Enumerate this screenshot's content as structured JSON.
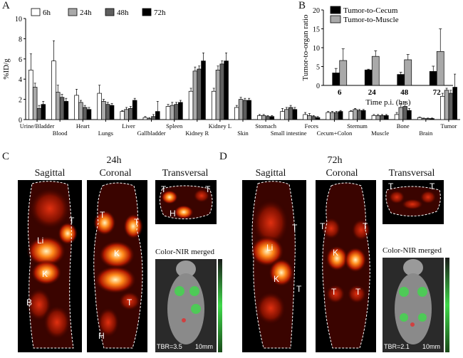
{
  "panels": {
    "A": "A",
    "B": "B",
    "C": "C",
    "D": "D"
  },
  "chart_data": [
    {
      "type": "bar",
      "ylabel": "%ID/g",
      "ylim": [
        0,
        10
      ],
      "yticks": [
        0,
        2,
        4,
        6,
        8,
        10
      ],
      "legend_position": "top-left",
      "categories": [
        "Urine/Bladder",
        "Blood",
        "Heart",
        "Lungs",
        "Liver",
        "Gallbladder",
        "Spleen",
        "Kidney R",
        "Kidney L",
        "Skin",
        "Stomach",
        "Small intestine",
        "Feces",
        "Cecum+Colon",
        "Sternum",
        "Muscle",
        "Bone",
        "Brain",
        "Tumor"
      ],
      "series": [
        {
          "name": "6h",
          "color": "#ffffff",
          "values": [
            4.9,
            5.8,
            2.4,
            2.6,
            0.8,
            0.2,
            1.3,
            2.8,
            2.8,
            1.2,
            0.4,
            0.8,
            0.5,
            0.7,
            0.8,
            0.4,
            0.5,
            0.2,
            2.3
          ]
        },
        {
          "name": "24h",
          "color": "#a9a9a9",
          "values": [
            3.2,
            2.7,
            1.7,
            1.8,
            1.0,
            0.1,
            1.4,
            4.8,
            4.9,
            2.0,
            0.4,
            1.0,
            0.4,
            0.7,
            1.0,
            0.4,
            1.2,
            0.1,
            2.9
          ]
        },
        {
          "name": "48h",
          "color": "#5e5e5e",
          "values": [
            1.1,
            2.2,
            1.2,
            1.5,
            1.1,
            0.3,
            1.5,
            5.0,
            5.5,
            1.9,
            0.3,
            1.2,
            0.3,
            0.7,
            0.9,
            0.4,
            1.3,
            0.1,
            2.6
          ]
        },
        {
          "name": "72h",
          "color": "#000000",
          "values": [
            1.5,
            1.8,
            1.0,
            1.4,
            1.9,
            0.8,
            1.7,
            5.8,
            5.8,
            1.9,
            0.3,
            1.0,
            0.2,
            0.8,
            0.9,
            0.4,
            0.9,
            0.1,
            3.2
          ]
        }
      ],
      "errors": [
        [
          1.6,
          2.0,
          0.6,
          0.8,
          0.1,
          0.1,
          0.2,
          0.3,
          0.3,
          0.2,
          0.1,
          0.3,
          0.2,
          0.1,
          0.1,
          0.1,
          0.2,
          0.05,
          0.3
        ],
        [
          0.4,
          0.7,
          0.2,
          0.2,
          0.2,
          0.1,
          0.3,
          0.4,
          0.4,
          0.2,
          0.1,
          0.2,
          0.2,
          0.1,
          0.1,
          0.1,
          0.4,
          0.05,
          0.2
        ],
        [
          0.3,
          0.3,
          0.2,
          0.2,
          0.2,
          0.2,
          0.2,
          0.3,
          0.3,
          0.2,
          0.1,
          0.2,
          0.1,
          0.1,
          0.1,
          0.1,
          0.4,
          0.05,
          0.3
        ],
        [
          0.3,
          0.3,
          0.2,
          0.2,
          0.2,
          1.0,
          0.2,
          0.8,
          0.8,
          0.2,
          0.1,
          0.2,
          0.1,
          0.1,
          0.1,
          0.1,
          0.2,
          0.05,
          1.3
        ]
      ]
    },
    {
      "type": "bar",
      "xlabel": "Time p.i. (hrs)",
      "ylabel": "Tumor-to-organ ratio",
      "ylim": [
        0,
        20
      ],
      "yticks": [
        0,
        5,
        10,
        15,
        20
      ],
      "legend_position": "top",
      "categories": [
        "6",
        "24",
        "48",
        "72"
      ],
      "series": [
        {
          "name": "Tumor-to-Cecum",
          "color": "#000000",
          "values": [
            3.3,
            4.1,
            2.9,
            3.7
          ]
        },
        {
          "name": "Tumor-to-Muscle",
          "color": "#a9a9a9",
          "values": [
            6.6,
            7.7,
            6.8,
            9.0
          ]
        }
      ],
      "errors": [
        [
          1.2,
          0.2,
          0.6,
          1.4
        ],
        [
          3.1,
          1.5,
          1.4,
          6.0
        ]
      ]
    }
  ],
  "panelC": {
    "timepoint": "24h",
    "views": {
      "sagittal": "Sagittal",
      "coronal": "Coronal",
      "transversal": "Transversal"
    },
    "merged_label": "Color-NIR merged",
    "tbr": "TBR=3.5",
    "scale": "10mm",
    "marks": {
      "T": "T",
      "Li": "Li",
      "K": "K",
      "B": "B",
      "H": "H"
    }
  },
  "panelD": {
    "timepoint": "72h",
    "views": {
      "sagittal": "Sagittal",
      "coronal": "Coronal",
      "transversal": "Transversal"
    },
    "merged_label": "Color-NIR merged",
    "tbr": "TBR=2.1",
    "scale": "10mm",
    "marks": {
      "T": "T",
      "Li": "Li",
      "K": "K"
    }
  },
  "colors": {
    "hot_dark": "#2a0000",
    "hot_mid": "#b01a00",
    "hot_bright": "#ff8a1a",
    "hot_white": "#fff3c0",
    "nir_green": "#3fd94a"
  }
}
